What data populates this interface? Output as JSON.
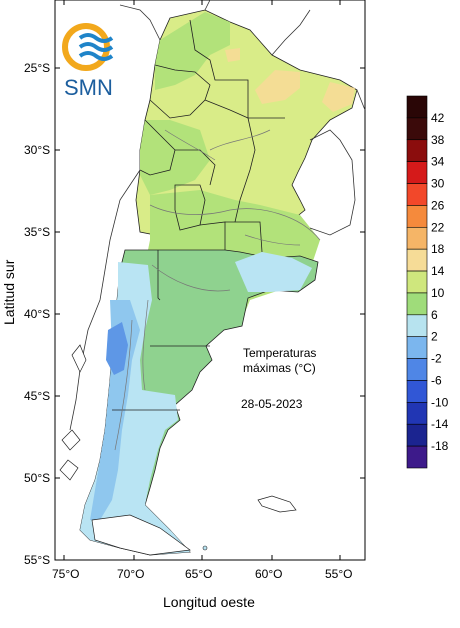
{
  "logo": {
    "text": "SMN"
  },
  "map": {
    "title_line1": "Temperaturas",
    "title_line2": "máximas (°C)",
    "date": "28-05-2023",
    "xlabel": "Longitud oeste",
    "ylabel": "Latitud sur",
    "x_ticks": [
      "75°O",
      "70°O",
      "65°O",
      "60°O",
      "55°O"
    ],
    "y_ticks": [
      "25°S",
      "30°S",
      "35°S",
      "40°S",
      "45°S",
      "50°S",
      "55°S"
    ]
  },
  "colorbar": {
    "levels": [
      {
        "label": "42",
        "color": "#3b0a0a"
      },
      {
        "label": "38",
        "color": "#8b0d0d"
      },
      {
        "label": "34",
        "color": "#d51a1a"
      },
      {
        "label": "30",
        "color": "#f2482a"
      },
      {
        "label": "26",
        "color": "#f58a3c"
      },
      {
        "label": "22",
        "color": "#f5b567"
      },
      {
        "label": "18",
        "color": "#f6dc97"
      },
      {
        "label": "14",
        "color": "#cfe77d"
      },
      {
        "label": "10",
        "color": "#9fdc7a"
      },
      {
        "label": "6",
        "color": "#b7e3ef"
      },
      {
        "label": "2",
        "color": "#7bb6ee"
      },
      {
        "label": "-2",
        "color": "#4f86e6"
      },
      {
        "label": "-6",
        "color": "#3157d6"
      },
      {
        "label": "-10",
        "color": "#2136b4"
      },
      {
        "label": "-14",
        "color": "#1b2490"
      },
      {
        "label": "-18",
        "color": "#3d1a8a"
      }
    ],
    "bottom_color": "#5a1b9e"
  },
  "colors": {
    "warm": "#f6dc97",
    "yellow_green": "#d9ec88",
    "light_green": "#b2e27a",
    "green": "#8fd28f",
    "light_blue": "#b9e4f3",
    "mid_blue": "#8fc7ee",
    "cold_blue": "#5e97e6"
  }
}
